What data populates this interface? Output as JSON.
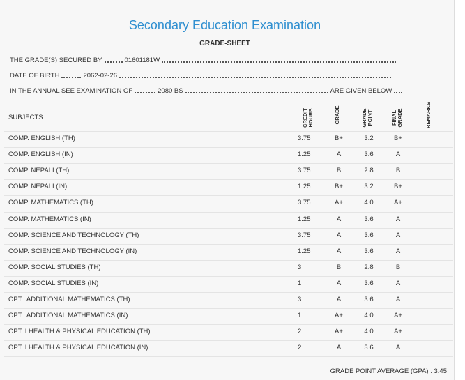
{
  "header": {
    "title": "Secondary Education Examination",
    "subtitle": "GRADE-SHEET"
  },
  "info": [
    {
      "label": "THE GRADE(S) SECURED BY",
      "value": "01601181W"
    },
    {
      "label": "DATE OF BIRTH",
      "value": "2062-02-26"
    },
    {
      "label": "IN THE ANNUAL SEE EXAMINATION OF",
      "value": "2080 BS",
      "suffix": "ARE GIVEN BELOW"
    }
  ],
  "table": {
    "columns": [
      "SUBJECTS",
      "CREDIT HOURS",
      "GRADE",
      "GRADE POINT",
      "FINAL GRADE",
      "REMARKS"
    ],
    "rows": [
      [
        "COMP. ENGLISH (TH)",
        "3.75",
        "B+",
        "3.2",
        "B+"
      ],
      [
        "COMP. ENGLISH (IN)",
        "1.25",
        "A",
        "3.6",
        "A"
      ],
      [
        "COMP. NEPALI (TH)",
        "3.75",
        "B",
        "2.8",
        "B"
      ],
      [
        "COMP. NEPALI (IN)",
        "1.25",
        "B+",
        "3.2",
        "B+"
      ],
      [
        "COMP. MATHEMATICS (TH)",
        "3.75",
        "A+",
        "4.0",
        "A+"
      ],
      [
        "COMP. MATHEMATICS (IN)",
        "1.25",
        "A",
        "3.6",
        "A"
      ],
      [
        "COMP. SCIENCE AND TECHNOLOGY (TH)",
        "3.75",
        "A",
        "3.6",
        "A"
      ],
      [
        "COMP. SCIENCE AND TECHNOLOGY (IN)",
        "1.25",
        "A",
        "3.6",
        "A"
      ],
      [
        "COMP. SOCIAL STUDIES (TH)",
        "3",
        "B",
        "2.8",
        "B"
      ],
      [
        "COMP. SOCIAL STUDIES (IN)",
        "1",
        "A",
        "3.6",
        "A"
      ],
      [
        "OPT.I ADDITIONAL MATHEMATICS (TH)",
        "3",
        "A",
        "3.6",
        "A"
      ],
      [
        "OPT.I ADDITIONAL MATHEMATICS (IN)",
        "1",
        "A+",
        "4.0",
        "A+"
      ],
      [
        "OPT.II HEALTH & PHYSICAL EDUCATION (TH)",
        "2",
        "A+",
        "4.0",
        "A+"
      ],
      [
        "OPT.II HEALTH & PHYSICAL EDUCATION (IN)",
        "2",
        "A",
        "3.6",
        "A"
      ]
    ]
  },
  "gpa": {
    "label": "GRADE POINT AVERAGE (GPA) :",
    "value": "3.45"
  }
}
